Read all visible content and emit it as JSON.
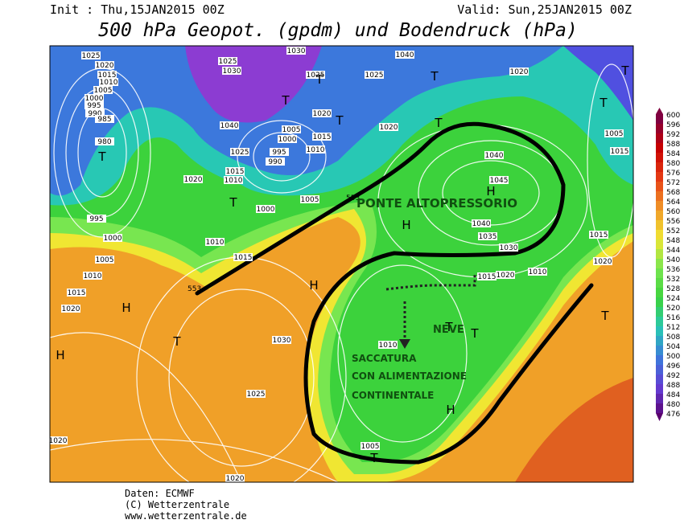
{
  "header": {
    "init": "Init : Thu,15JAN2015 00Z",
    "valid": "Valid: Sun,25JAN2015 00Z",
    "title": "500 hPa Geopot. (gpdm) und Bodendruck (hPa)"
  },
  "annotations": [
    "PONTE ALTOPRESSORIO",
    "SACCATURA",
    "CON ALIMENTAZIONE",
    "CONTINENTALE",
    "NEVE"
  ],
  "legend": {
    "levels": [
      600,
      596,
      592,
      588,
      584,
      580,
      576,
      572,
      568,
      564,
      560,
      556,
      552,
      548,
      544,
      540,
      536,
      532,
      528,
      524,
      520,
      516,
      512,
      508,
      504,
      500,
      496,
      492,
      488,
      484,
      480,
      476
    ]
  },
  "contour_labels": [
    553,
    553
  ],
  "isobar_labels": [
    1025,
    1020,
    1015,
    1010,
    1005,
    1000,
    995,
    990,
    985,
    980,
    995,
    1000,
    1005,
    1010,
    1015,
    1020,
    1025,
    1030,
    1030,
    1025,
    1025,
    1040,
    1020,
    1000,
    1005,
    1015,
    1010,
    995,
    990,
    1020,
    1040,
    1045,
    1040,
    1035,
    1030,
    1020,
    1015,
    1010,
    1015,
    1020,
    1005,
    1015,
    1020,
    1020,
    1015,
    1010,
    1025,
    1040,
    1000,
    1005,
    1010,
    1015,
    1030,
    1025,
    1020,
    1020,
    1010,
    1005
  ],
  "pressure_centers": [
    "T",
    "T",
    "T",
    "T",
    "T",
    "T",
    "T",
    "T",
    "T",
    "T",
    "T",
    "T",
    "H",
    "H",
    "H",
    "H",
    "H",
    "H",
    "T",
    "T"
  ],
  "footer": [
    "Daten: ECMWF",
    "(C) Wetterzentrale",
    "www.wetterzentrale.de"
  ]
}
